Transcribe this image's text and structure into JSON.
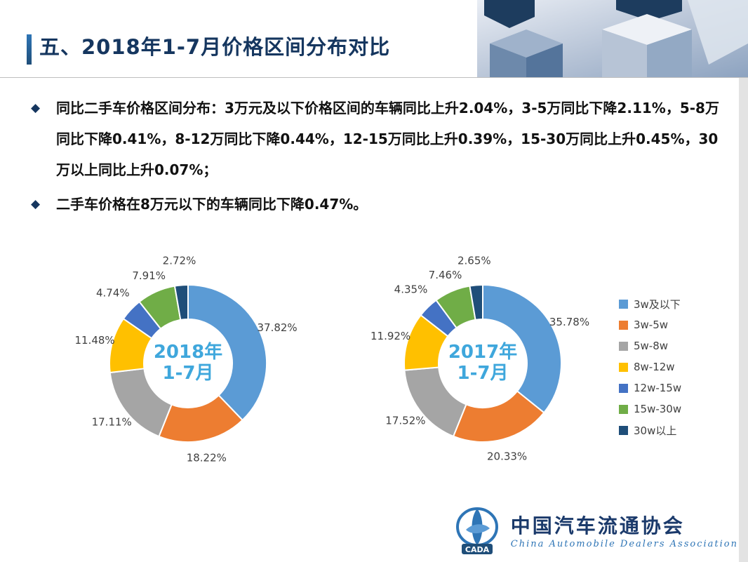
{
  "header": {
    "title": "五、2018年1-7月价格区间分布对比"
  },
  "bullets": {
    "icon": "◆",
    "items": [
      {
        "text": "同比二手车价格区间分布：3万元及以下价格区间的车辆同比上升2.04%，3-5万同比下降2.11%，5-8万同比下降0.41%，8-12万同比下降0.44%，12-15万同比上升0.39%，15-30万同比上升0.45%，30万以上同比上升0.07%；"
      },
      {
        "text": "二手车价格在8万元以下的车辆同比下降0.47%。"
      }
    ]
  },
  "chart_data": {
    "type": "pie",
    "subtype": "donut",
    "categories": [
      "3w及以下",
      "3w-5w",
      "5w-8w",
      "8w-12w",
      "12w-15w",
      "15w-30w",
      "30w以上"
    ],
    "colors": [
      "#5B9BD5",
      "#ED7D31",
      "#A5A5A5",
      "#FFC000",
      "#4472C4",
      "#70AD47",
      "#1F4E79"
    ],
    "charts": [
      {
        "title_lines": [
          "2018年",
          "1-7月"
        ],
        "values": [
          37.82,
          18.22,
          17.11,
          11.48,
          4.74,
          7.91,
          2.72
        ]
      },
      {
        "title_lines": [
          "2017年",
          "1-7月"
        ],
        "values": [
          35.78,
          20.33,
          17.52,
          11.92,
          4.35,
          7.46,
          2.65
        ]
      }
    ],
    "label_format": "0.00%",
    "legend_position": "right",
    "center_text_color": "#3FA7DC",
    "label_color": "#404040"
  },
  "footer": {
    "logo_acronym": "CADA",
    "logo_cn": "中国汽车流通协会",
    "logo_en": "China Automobile Dealers Association"
  }
}
